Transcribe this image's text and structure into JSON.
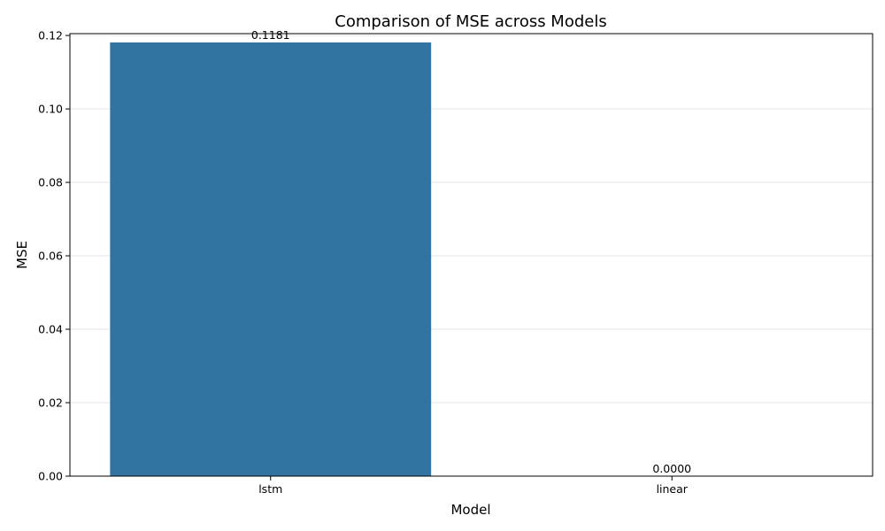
{
  "chart_data": {
    "type": "bar",
    "title": "Comparison of MSE across Models",
    "xlabel": "Model",
    "ylabel": "MSE",
    "categories": [
      "lstm",
      "linear"
    ],
    "values": [
      0.1181,
      0.0
    ],
    "value_labels": [
      "0.1181",
      "0.0000"
    ],
    "ylim": [
      0,
      0.1205
    ],
    "yticks": [
      0.0,
      0.02,
      0.04,
      0.06,
      0.08,
      0.1,
      0.12
    ],
    "ytick_labels": [
      "0.00",
      "0.02",
      "0.04",
      "0.06",
      "0.08",
      "0.10",
      "0.12"
    ],
    "grid": "y-axis",
    "legend": "none",
    "bar_color": "#3274a1"
  }
}
